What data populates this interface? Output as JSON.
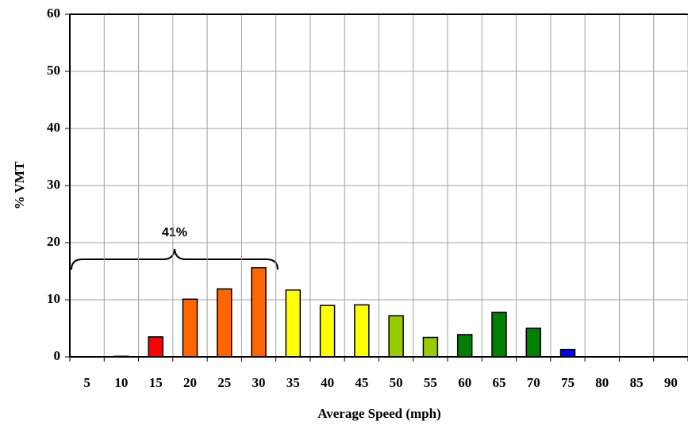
{
  "chart_data": {
    "type": "bar",
    "x_label": "Average Speed (mph)",
    "y_label": "% VMT",
    "categories": [
      "5",
      "10",
      "15",
      "20",
      "25",
      "30",
      "35",
      "40",
      "45",
      "50",
      "55",
      "60",
      "65",
      "70",
      "75",
      "80",
      "85",
      "90"
    ],
    "values": [
      0,
      0.1,
      3.5,
      10.1,
      11.9,
      15.6,
      11.7,
      9,
      9.1,
      7.2,
      3.4,
      3.9,
      7.8,
      5,
      1.3,
      0,
      0,
      0
    ],
    "colors": [
      null,
      "#ff0000",
      "#ff0000",
      "#ff6600",
      "#ff6600",
      "#ff6600",
      "#ffff00",
      "#ffff00",
      "#ffff00",
      "#99cc00",
      "#99cc00",
      "#008000",
      "#008000",
      "#008000",
      "#0000ff",
      null,
      null,
      null
    ],
    "ylim": [
      0,
      60
    ],
    "yticks": [
      0,
      10,
      20,
      30,
      40,
      50,
      60
    ],
    "grid": true,
    "annotation": "41%"
  }
}
